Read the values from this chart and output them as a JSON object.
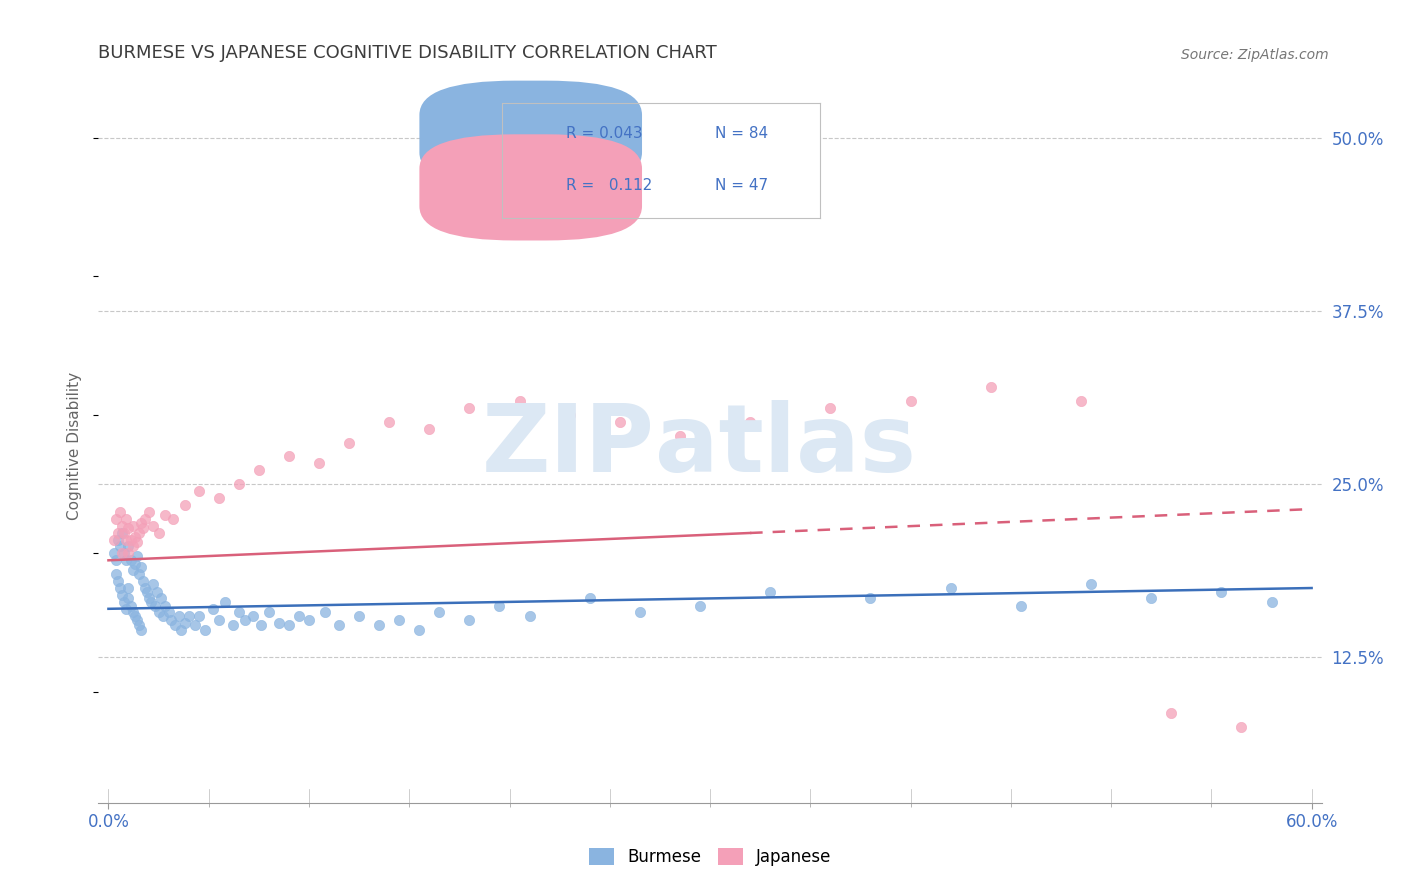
{
  "title": "BURMESE VS JAPANESE COGNITIVE DISABILITY CORRELATION CHART",
  "source": "Source: ZipAtlas.com",
  "ylabel": "Cognitive Disability",
  "xlim": [
    -0.005,
    0.605
  ],
  "ylim": [
    0.02,
    0.535
  ],
  "yticks": [
    0.125,
    0.25,
    0.375,
    0.5
  ],
  "ytick_labels": [
    "12.5%",
    "25.0%",
    "37.5%",
    "50.0%"
  ],
  "xtick_edge_left": "0.0%",
  "xtick_edge_right": "60.0%",
  "burmese_R": 0.043,
  "burmese_N": 84,
  "japanese_R": 0.112,
  "japanese_N": 47,
  "burmese_color": "#8ab4e0",
  "japanese_color": "#f4a0b8",
  "burmese_line_color": "#3b6fba",
  "japanese_line_color": "#d9607a",
  "background_color": "#ffffff",
  "grid_color": "#c8c8c8",
  "watermark_color": "#dce8f4",
  "legend_color": "#4472c4",
  "title_color": "#3d3d3d",
  "ylabel_color": "#666666",
  "ytick_color": "#4472c4",
  "source_color": "#777777",
  "burmese_x": [
    0.003,
    0.004,
    0.004,
    0.005,
    0.005,
    0.006,
    0.006,
    0.007,
    0.007,
    0.008,
    0.008,
    0.009,
    0.009,
    0.01,
    0.01,
    0.01,
    0.011,
    0.011,
    0.012,
    0.012,
    0.013,
    0.013,
    0.014,
    0.014,
    0.015,
    0.015,
    0.016,
    0.016,
    0.017,
    0.018,
    0.019,
    0.02,
    0.021,
    0.022,
    0.023,
    0.024,
    0.025,
    0.026,
    0.027,
    0.028,
    0.03,
    0.031,
    0.033,
    0.035,
    0.036,
    0.038,
    0.04,
    0.043,
    0.045,
    0.048,
    0.052,
    0.055,
    0.058,
    0.062,
    0.065,
    0.068,
    0.072,
    0.076,
    0.08,
    0.085,
    0.09,
    0.095,
    0.1,
    0.108,
    0.115,
    0.125,
    0.135,
    0.145,
    0.155,
    0.165,
    0.18,
    0.195,
    0.21,
    0.24,
    0.265,
    0.295,
    0.33,
    0.38,
    0.42,
    0.455,
    0.49,
    0.52,
    0.555,
    0.58
  ],
  "burmese_y": [
    0.2,
    0.195,
    0.185,
    0.21,
    0.18,
    0.205,
    0.175,
    0.215,
    0.17,
    0.2,
    0.165,
    0.195,
    0.16,
    0.205,
    0.175,
    0.168,
    0.195,
    0.162,
    0.188,
    0.158,
    0.192,
    0.155,
    0.198,
    0.152,
    0.185,
    0.148,
    0.19,
    0.145,
    0.18,
    0.175,
    0.172,
    0.168,
    0.165,
    0.178,
    0.162,
    0.172,
    0.158,
    0.168,
    0.155,
    0.162,
    0.158,
    0.152,
    0.148,
    0.155,
    0.145,
    0.15,
    0.155,
    0.148,
    0.155,
    0.145,
    0.16,
    0.152,
    0.165,
    0.148,
    0.158,
    0.152,
    0.155,
    0.148,
    0.158,
    0.15,
    0.148,
    0.155,
    0.152,
    0.158,
    0.148,
    0.155,
    0.148,
    0.152,
    0.145,
    0.158,
    0.152,
    0.162,
    0.155,
    0.168,
    0.158,
    0.162,
    0.172,
    0.168,
    0.175,
    0.162,
    0.178,
    0.168,
    0.172,
    0.165
  ],
  "japanese_x": [
    0.003,
    0.004,
    0.005,
    0.006,
    0.007,
    0.007,
    0.008,
    0.009,
    0.009,
    0.01,
    0.01,
    0.011,
    0.012,
    0.012,
    0.013,
    0.014,
    0.015,
    0.016,
    0.017,
    0.018,
    0.02,
    0.022,
    0.025,
    0.028,
    0.032,
    0.038,
    0.045,
    0.055,
    0.065,
    0.075,
    0.09,
    0.105,
    0.12,
    0.14,
    0.16,
    0.18,
    0.205,
    0.23,
    0.255,
    0.285,
    0.32,
    0.36,
    0.4,
    0.44,
    0.485,
    0.53,
    0.565
  ],
  "japanese_y": [
    0.21,
    0.225,
    0.215,
    0.23,
    0.2,
    0.22,
    0.215,
    0.21,
    0.225,
    0.2,
    0.218,
    0.21,
    0.205,
    0.22,
    0.212,
    0.208,
    0.215,
    0.222,
    0.218,
    0.225,
    0.23,
    0.22,
    0.215,
    0.228,
    0.225,
    0.235,
    0.245,
    0.24,
    0.25,
    0.26,
    0.27,
    0.265,
    0.28,
    0.295,
    0.29,
    0.305,
    0.31,
    0.3,
    0.295,
    0.285,
    0.295,
    0.305,
    0.31,
    0.32,
    0.31,
    0.085,
    0.075
  ],
  "burmese_line_x0": 0.0,
  "burmese_line_x1": 0.6,
  "burmese_line_y0": 0.16,
  "burmese_line_y1": 0.175,
  "japanese_line_x0": 0.0,
  "japanese_line_x1": 0.6,
  "japanese_line_y0": 0.195,
  "japanese_line_y1": 0.232,
  "japanese_line_solid_end": 0.32
}
